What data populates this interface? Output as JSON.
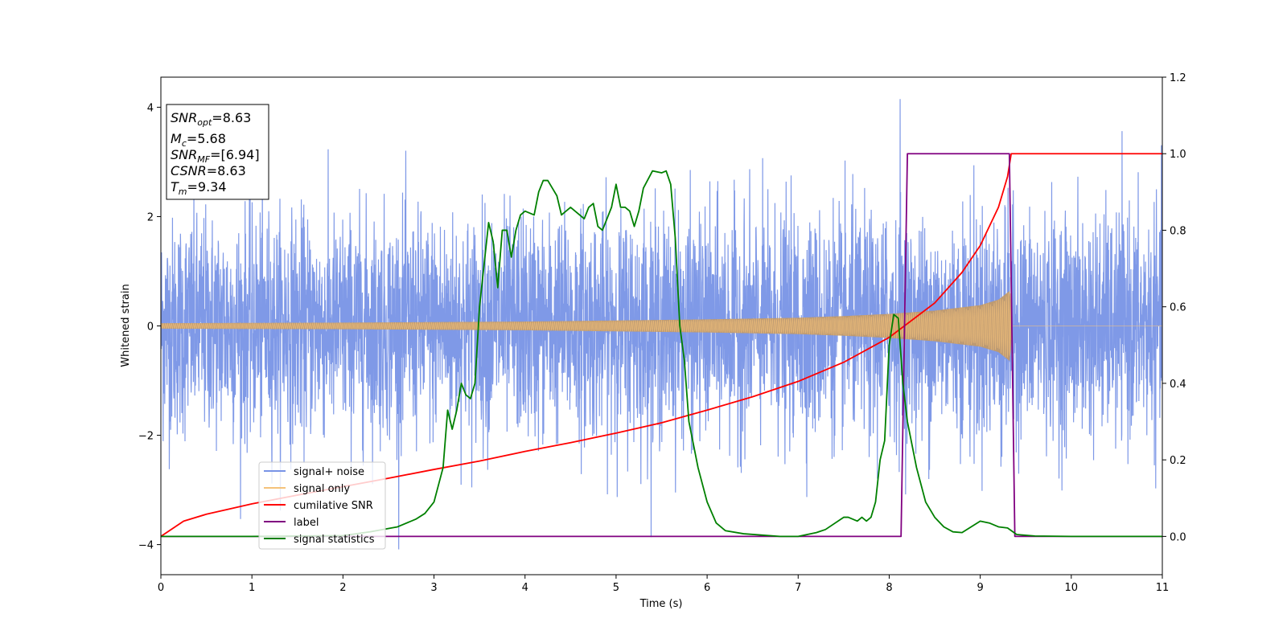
{
  "chart_data": {
    "type": "line",
    "xlabel": "Time (s)",
    "ylabel": "Whitened strain",
    "xlim": [
      0,
      11
    ],
    "ylim": [
      -4.55,
      4.55
    ],
    "y2lim": [
      -0.1,
      1.2
    ],
    "xticks": [
      "0",
      "1",
      "2",
      "3",
      "4",
      "5",
      "6",
      "7",
      "8",
      "9",
      "10",
      "11"
    ],
    "yticks": [
      "−4",
      "−2",
      "0",
      "2",
      "4"
    ],
    "y2ticks": [
      "0.0",
      "0.2",
      "0.4",
      "0.6",
      "0.8",
      "1.0",
      "1.2"
    ],
    "grid": false,
    "legend_position": "lower-left",
    "stats": {
      "snr_opt": {
        "symbol": "SNR",
        "sub": "opt",
        "value": "=8.63"
      },
      "mc": {
        "symbol": "M",
        "sub": "c",
        "value": "=5.68"
      },
      "snr_mf": {
        "symbol": "SNR",
        "sub": "MF",
        "value": "=[6.94]"
      },
      "csnr": {
        "symbol": "CSNR",
        "value": "=8.63"
      },
      "tm": {
        "symbol": "T",
        "sub": "m",
        "value": "=9.34"
      }
    },
    "series": [
      {
        "name": "signal+ noise",
        "axis": "left",
        "color": "#7893e6",
        "noise_sigma": 1.0,
        "x_range": [
          0,
          11
        ],
        "peak_value": 4.15,
        "peak_time": 8.12
      },
      {
        "name": "signal only",
        "axis": "left",
        "color": "#f5c27a",
        "envelope_x": [
          0,
          1,
          2,
          3,
          4,
          5,
          6,
          7,
          7.5,
          8,
          8.5,
          9,
          9.2,
          9.33,
          9.35,
          11
        ],
        "envelope_y": [
          0.05,
          0.055,
          0.06,
          0.07,
          0.08,
          0.1,
          0.12,
          0.15,
          0.18,
          0.22,
          0.28,
          0.38,
          0.48,
          0.65,
          0.0,
          0.0
        ]
      },
      {
        "name": "cumilative SNR",
        "axis": "right",
        "color": "#ff0000",
        "x": [
          0,
          0.25,
          0.5,
          1,
          1.5,
          2,
          2.5,
          3,
          3.5,
          4,
          4.5,
          5,
          5.5,
          6,
          6.5,
          7,
          7.5,
          8,
          8.5,
          8.8,
          9,
          9.2,
          9.3,
          9.34,
          9.4,
          11
        ],
        "y": [
          0.0,
          0.04,
          0.058,
          0.085,
          0.108,
          0.13,
          0.152,
          0.175,
          0.197,
          0.222,
          0.245,
          0.27,
          0.297,
          0.33,
          0.365,
          0.405,
          0.455,
          0.52,
          0.61,
          0.69,
          0.76,
          0.86,
          0.94,
          1.0,
          1.0,
          1.0
        ]
      },
      {
        "name": "label",
        "axis": "right",
        "color": "#800080",
        "x": [
          0,
          8.13,
          8.2,
          9.32,
          9.38,
          11
        ],
        "y": [
          0.0,
          0.0,
          1.0,
          1.0,
          0.0,
          0.0
        ]
      },
      {
        "name": "signal statistics",
        "axis": "right",
        "color": "#008000",
        "x": [
          0,
          1,
          2,
          2.3,
          2.6,
          2.8,
          2.9,
          3.0,
          3.1,
          3.15,
          3.2,
          3.25,
          3.3,
          3.35,
          3.4,
          3.45,
          3.5,
          3.6,
          3.65,
          3.7,
          3.75,
          3.8,
          3.85,
          3.9,
          3.95,
          4.0,
          4.1,
          4.15,
          4.2,
          4.25,
          4.3,
          4.35,
          4.4,
          4.5,
          4.55,
          4.6,
          4.65,
          4.7,
          4.75,
          4.8,
          4.85,
          4.9,
          4.95,
          5.0,
          5.05,
          5.1,
          5.15,
          5.2,
          5.25,
          5.3,
          5.4,
          5.5,
          5.55,
          5.6,
          5.65,
          5.7,
          5.75,
          5.8,
          5.85,
          5.9,
          6.0,
          6.1,
          6.2,
          6.4,
          6.8,
          7.0,
          7.2,
          7.3,
          7.5,
          7.55,
          7.6,
          7.65,
          7.7,
          7.75,
          7.8,
          7.85,
          7.9,
          7.95,
          8.0,
          8.05,
          8.1,
          8.15,
          8.2,
          8.3,
          8.4,
          8.5,
          8.6,
          8.7,
          8.8,
          9.0,
          9.1,
          9.2,
          9.3,
          9.4,
          9.6,
          10,
          11
        ],
        "y": [
          0.0,
          0.0,
          0.002,
          0.012,
          0.025,
          0.045,
          0.06,
          0.09,
          0.18,
          0.33,
          0.28,
          0.33,
          0.4,
          0.37,
          0.36,
          0.4,
          0.6,
          0.82,
          0.77,
          0.65,
          0.8,
          0.8,
          0.73,
          0.8,
          0.84,
          0.85,
          0.84,
          0.9,
          0.93,
          0.93,
          0.91,
          0.89,
          0.84,
          0.86,
          0.85,
          0.84,
          0.83,
          0.86,
          0.87,
          0.81,
          0.8,
          0.83,
          0.86,
          0.92,
          0.86,
          0.86,
          0.85,
          0.81,
          0.85,
          0.91,
          0.955,
          0.95,
          0.955,
          0.92,
          0.78,
          0.55,
          0.46,
          0.3,
          0.24,
          0.18,
          0.09,
          0.035,
          0.015,
          0.007,
          0.0,
          0.0,
          0.01,
          0.018,
          0.05,
          0.05,
          0.045,
          0.04,
          0.05,
          0.04,
          0.05,
          0.09,
          0.2,
          0.25,
          0.5,
          0.58,
          0.57,
          0.4,
          0.3,
          0.18,
          0.09,
          0.05,
          0.025,
          0.012,
          0.01,
          0.04,
          0.035,
          0.025,
          0.022,
          0.005,
          0.001,
          0.0,
          0.0
        ]
      }
    ]
  }
}
